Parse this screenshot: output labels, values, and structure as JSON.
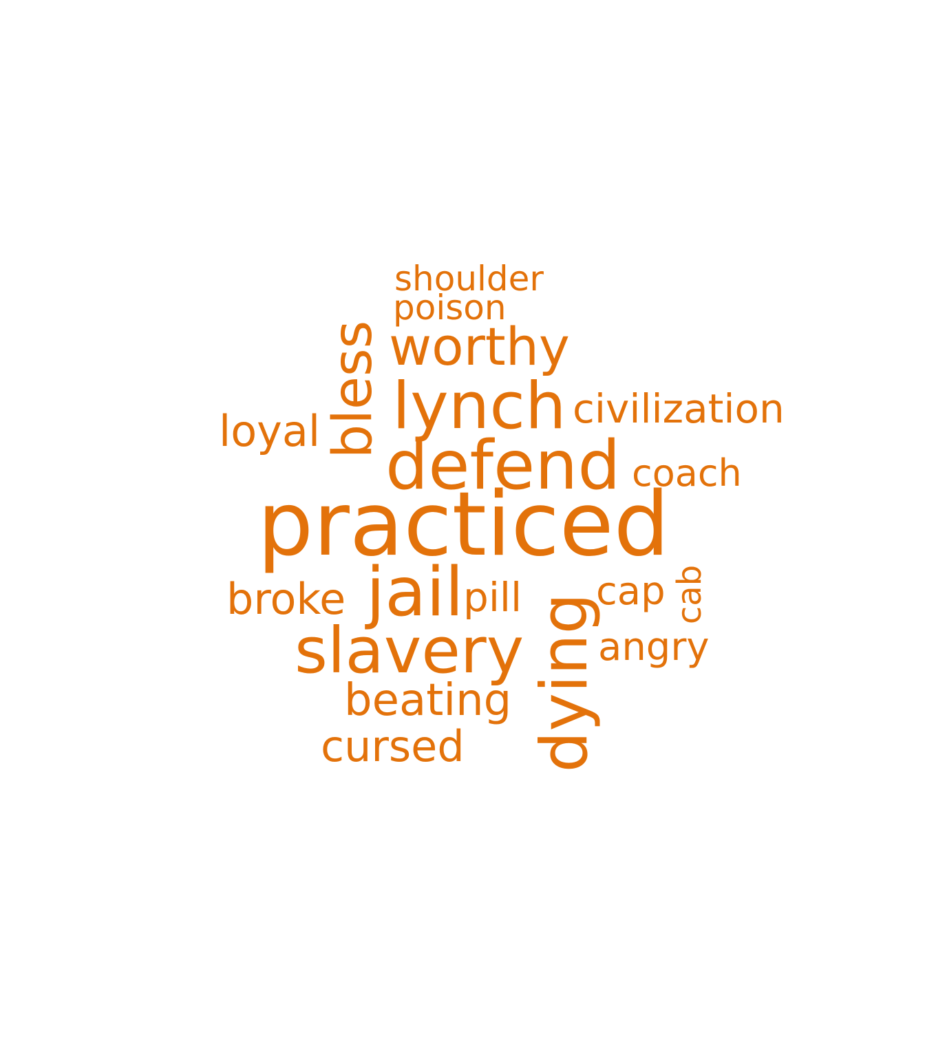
{
  "color": "#e3720a",
  "words": {
    "shoulder": "shoulder",
    "poison": "poison",
    "worthy": "worthy",
    "lynch": "lynch",
    "civilization": "civilization",
    "loyal": "loyal",
    "bless": "bless",
    "defend": "defend",
    "coach": "coach",
    "practiced": "practiced",
    "broke": "broke",
    "jail": "jail",
    "pill": "pill",
    "cap": "cap",
    "cab": "cab",
    "slavery": "slavery",
    "angry": "angry",
    "dying": "dying",
    "beating": "beating",
    "cursed": "cursed"
  }
}
